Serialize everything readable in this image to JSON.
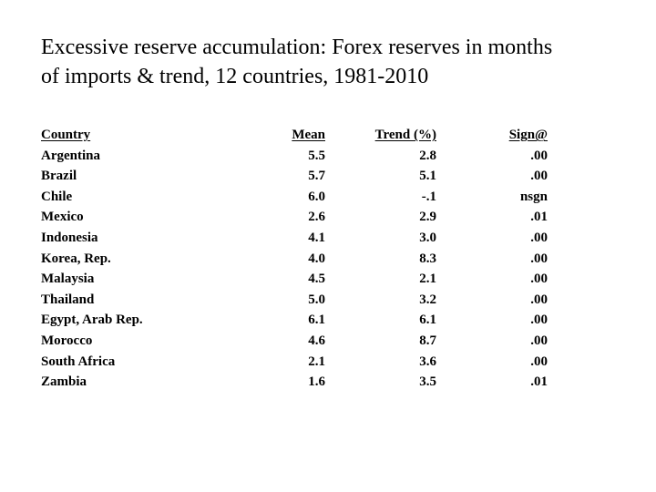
{
  "slide": {
    "title_line1": "Excessive reserve accumulation: Forex reserves in months",
    "title_line2": "of imports & trend, 12 countries, 1981-2010"
  },
  "table": {
    "headers": {
      "country": "Country",
      "mean": "Mean",
      "trend": "Trend (%)",
      "sign": "Sign@"
    },
    "rows": [
      {
        "country": "Argentina",
        "mean": "5.5",
        "trend": "2.8",
        "sign": ".00"
      },
      {
        "country": "Brazil",
        "mean": "5.7",
        "trend": "5.1",
        "sign": ".00"
      },
      {
        "country": "Chile",
        "mean": "6.0",
        "trend": "-.1",
        "sign": "nsgn"
      },
      {
        "country": "Mexico",
        "mean": "2.6",
        "trend": "2.9",
        "sign": ".01"
      },
      {
        "country": "Indonesia",
        "mean": "4.1",
        "trend": "3.0",
        "sign": ".00"
      },
      {
        "country": "Korea, Rep.",
        "mean": "4.0",
        "trend": "8.3",
        "sign": ".00"
      },
      {
        "country": "Malaysia",
        "mean": "4.5",
        "trend": "2.1",
        "sign": ".00"
      },
      {
        "country": "Thailand",
        "mean": "5.0",
        "trend": "3.2",
        "sign": ".00"
      },
      {
        "country": "Egypt, Arab Rep.",
        "mean": "6.1",
        "trend": "6.1",
        "sign": ".00"
      },
      {
        "country": "Morocco",
        "mean": "4.6",
        "trend": "8.7",
        "sign": ".00"
      },
      {
        "country": "South Africa",
        "mean": "2.1",
        "trend": "3.6",
        "sign": ".00"
      },
      {
        "country": "Zambia",
        "mean": "1.6",
        "trend": "3.5",
        "sign": ".01"
      }
    ]
  }
}
